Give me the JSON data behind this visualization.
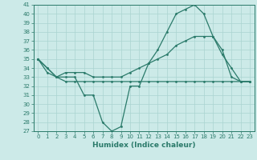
{
  "xlabel": "Humidex (Indice chaleur)",
  "x": [
    0,
    1,
    2,
    3,
    4,
    5,
    6,
    7,
    8,
    9,
    10,
    11,
    12,
    13,
    14,
    15,
    16,
    17,
    18,
    19,
    20,
    21,
    22,
    23
  ],
  "series1": [
    35,
    34,
    33,
    33,
    33,
    31,
    31,
    28,
    27,
    27.5,
    32,
    32,
    34.5,
    36,
    38,
    40,
    40.5,
    41,
    40,
    37.5,
    35.5,
    34,
    32.5,
    32.5
  ],
  "series2": [
    35,
    33.5,
    33,
    33.5,
    33.5,
    33.5,
    33,
    33,
    33,
    33,
    33.5,
    34,
    34.5,
    35,
    35.5,
    36.5,
    37,
    37.5,
    37.5,
    37.5,
    36,
    33,
    32.5,
    32.5
  ],
  "series3": [
    35,
    34,
    33,
    32.5,
    32.5,
    32.5,
    32.5,
    32.5,
    32.5,
    32.5,
    32.5,
    32.5,
    32.5,
    32.5,
    32.5,
    32.5,
    32.5,
    32.5,
    32.5,
    32.5,
    32.5,
    32.5,
    32.5,
    32.5
  ],
  "color": "#2a7a6a",
  "ylim_min": 27,
  "ylim_max": 41,
  "xlim_min": -0.5,
  "xlim_max": 23.5,
  "bg_color": "#cceae8",
  "grid_color": "#aad4d0"
}
